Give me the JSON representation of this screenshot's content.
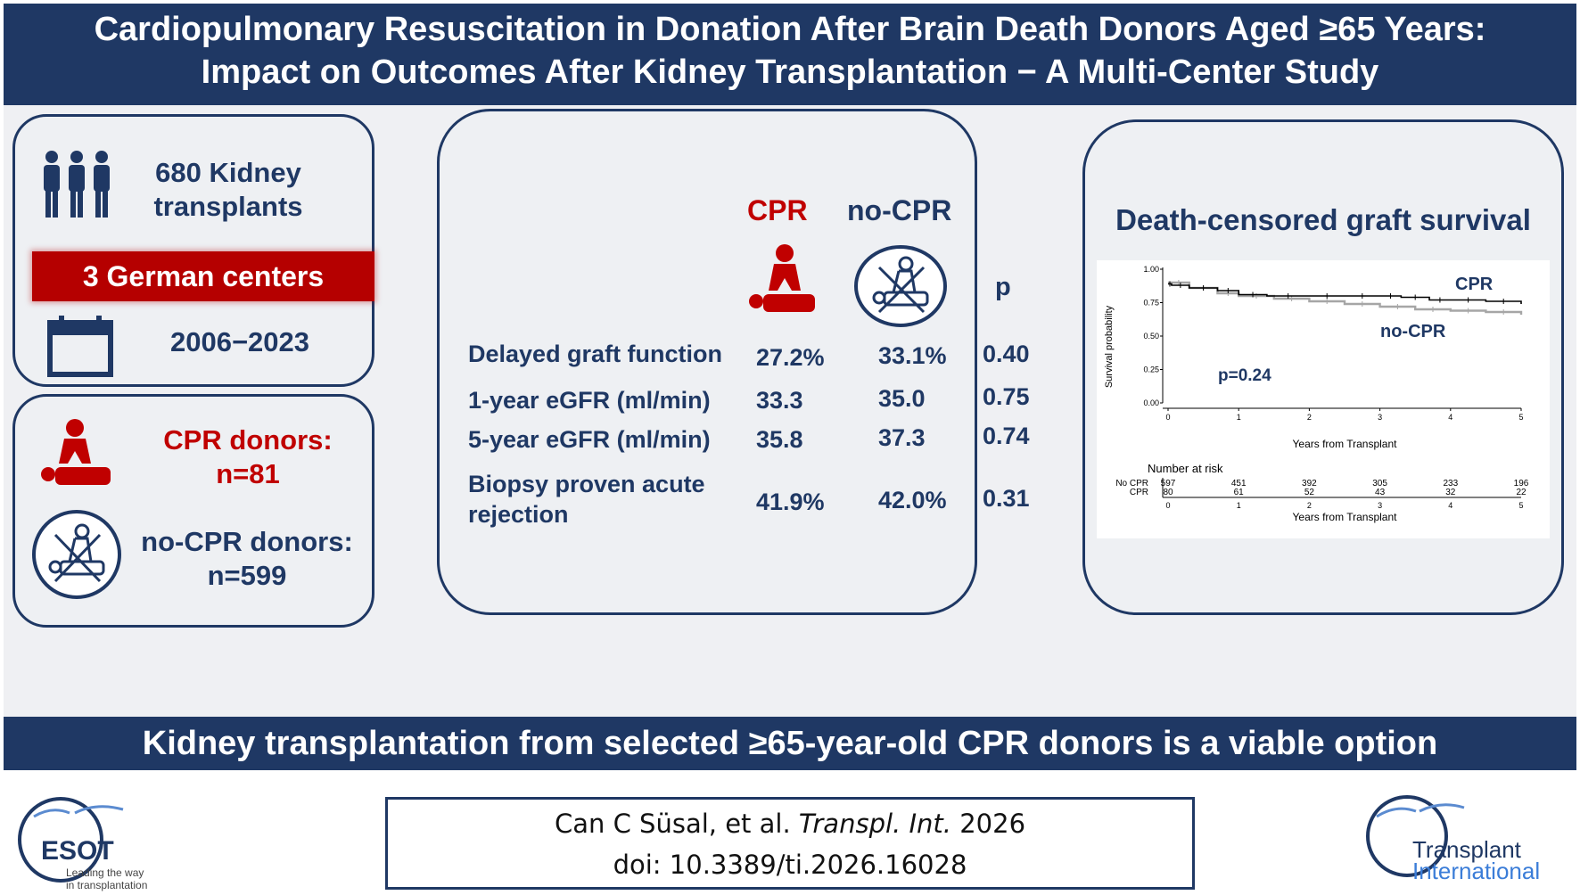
{
  "header": {
    "title_line1": "Cardiopulmonary Resuscitation in Donation After Brain Death Donors Aged ≥65 Years:",
    "title_line2": "Impact on Outcomes After Kidney Transplantation − A Multi-Center Study"
  },
  "left_panel": {
    "transplants_line1": "680 Kidney",
    "transplants_line2": "transplants",
    "centers": "3 German centers",
    "period": "2006−2023",
    "cpr_donors_label": "CPR donors:",
    "cpr_donors_n": "n=81",
    "nocpr_donors_label": "no-CPR donors:",
    "nocpr_donors_n": "n=599"
  },
  "table": {
    "col_cpr": "CPR",
    "col_nocpr": "no-CPR",
    "col_p": "p",
    "rows": [
      {
        "label": "Delayed graft function",
        "cpr": "27.2%",
        "nocpr": "33.1%",
        "p": "0.40"
      },
      {
        "label": "1-year eGFR (ml/min)",
        "cpr": "33.3",
        "nocpr": "35.0",
        "p": "0.75"
      },
      {
        "label": "5-year eGFR (ml/min)",
        "cpr": "35.8",
        "nocpr": "37.3",
        "p": "0.74"
      },
      {
        "label": "Biopsy proven acute",
        "label2": "rejection",
        "cpr": "41.9%",
        "nocpr": "42.0%",
        "p": "0.31"
      }
    ]
  },
  "right_panel": {
    "title": "Death-censored graft survival"
  },
  "chart_data": {
    "type": "line",
    "title": "Death-censored graft survival",
    "xlabel": "Years from Transplant",
    "ylabel": "Survival probability",
    "xlim": [
      0,
      5
    ],
    "ylim": [
      0,
      1
    ],
    "x_ticks": [
      "0",
      "1",
      "2",
      "3",
      "4",
      "5"
    ],
    "y_ticks": [
      "0.00",
      "0.25",
      "0.50",
      "0.75",
      "1.00"
    ],
    "annotation": "p=0.24",
    "series": [
      {
        "name": "CPR",
        "color": "#000000",
        "x": [
          0,
          0.05,
          0.3,
          0.7,
          1.0,
          1.4,
          2.0,
          2.5,
          3.0,
          3.3,
          3.7,
          4.0,
          4.5,
          5.0
        ],
        "y": [
          0.89,
          0.88,
          0.86,
          0.84,
          0.81,
          0.8,
          0.8,
          0.8,
          0.8,
          0.79,
          0.77,
          0.77,
          0.76,
          0.74
        ]
      },
      {
        "name": "no-CPR",
        "color": "#a6a6a6",
        "x": [
          0,
          0.3,
          0.7,
          1.0,
          1.5,
          2.0,
          2.5,
          3.0,
          3.5,
          4.0,
          4.5,
          5.0
        ],
        "y": [
          0.9,
          0.86,
          0.82,
          0.8,
          0.78,
          0.76,
          0.74,
          0.72,
          0.7,
          0.69,
          0.68,
          0.66
        ]
      }
    ],
    "risk_table": {
      "title": "Number at risk",
      "xlabel": "Years from Transplant",
      "rows": [
        {
          "label": "No CPR",
          "values": [
            "597",
            "451",
            "392",
            "305",
            "233",
            "196"
          ]
        },
        {
          "label": "CPR",
          "values": [
            "80",
            "61",
            "52",
            "43",
            "32",
            "22"
          ]
        }
      ]
    }
  },
  "footer": {
    "conclusion": "Kidney transplantation from selected ≥65-year-old CPR donors is a viable option",
    "citation_authors": "Can C Süsal, et al. ",
    "citation_journal": "Transpl. Int.",
    "citation_year": " 2026",
    "citation_doi": "doi: 10.3389/ti.2026.16028",
    "esot_logo_text": "ESOT",
    "esot_tagline_1": "Leading the way",
    "esot_tagline_2": "in transplantation",
    "ti_logo_line1": "Transplant",
    "ti_logo_line2": "International"
  },
  "colors": {
    "navy": "#1f3864",
    "red": "#c00000",
    "panel_bg": "#eef0f3"
  }
}
